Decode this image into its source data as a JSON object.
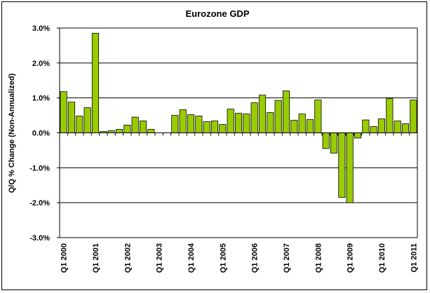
{
  "chart_data": {
    "type": "bar",
    "title": "Eurozone GDP",
    "ylabel": "Q/Q % Change (Non-Annualized)",
    "xlabel": "",
    "ylim": [
      -3.0,
      3.0
    ],
    "yticks": [
      3.0,
      2.0,
      1.0,
      0.0,
      -1.0,
      -2.0,
      -3.0
    ],
    "ytick_labels": [
      "3.0%",
      "2.0%",
      "1.0%",
      "0.0%",
      "-1.0%",
      "-2.0%",
      "-3.0%"
    ],
    "grid": true,
    "legend": "none",
    "bar_color": "#99cc00",
    "x_tick_labels": [
      {
        "label": "Q1 2000",
        "index": 0
      },
      {
        "label": "Q1 2001",
        "index": 4
      },
      {
        "label": "Q1 2002",
        "index": 8
      },
      {
        "label": "Q1 2003",
        "index": 12
      },
      {
        "label": "Q1 2004",
        "index": 16
      },
      {
        "label": "Q1 2005",
        "index": 20
      },
      {
        "label": "Q1 2006",
        "index": 24
      },
      {
        "label": "Q1 2007",
        "index": 28
      },
      {
        "label": "Q1 2008",
        "index": 32
      },
      {
        "label": "Q1 2009",
        "index": 36
      },
      {
        "label": "Q1 2010",
        "index": 40
      },
      {
        "label": "Q1 2011",
        "index": 44
      }
    ],
    "values": [
      1.18,
      0.88,
      0.48,
      0.72,
      2.85,
      0.04,
      0.06,
      0.1,
      0.22,
      0.45,
      0.34,
      0.1,
      0.0,
      0.0,
      0.5,
      0.66,
      0.52,
      0.48,
      0.32,
      0.34,
      0.24,
      0.68,
      0.56,
      0.54,
      0.86,
      1.08,
      0.58,
      0.93,
      1.2,
      0.36,
      0.54,
      0.38,
      0.94,
      -0.45,
      -0.58,
      -1.85,
      -2.0,
      -0.15,
      0.37,
      0.18,
      0.4,
      0.98,
      0.34,
      0.26,
      0.94
    ]
  }
}
